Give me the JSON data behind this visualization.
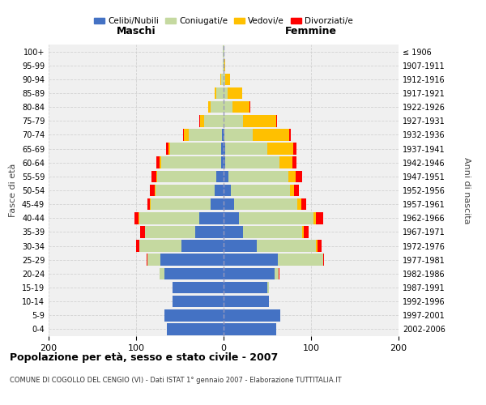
{
  "age_groups": [
    "0-4",
    "5-9",
    "10-14",
    "15-19",
    "20-24",
    "25-29",
    "30-34",
    "35-39",
    "40-44",
    "45-49",
    "50-54",
    "55-59",
    "60-64",
    "65-69",
    "70-74",
    "75-79",
    "80-84",
    "85-89",
    "90-94",
    "95-99",
    "100+"
  ],
  "birth_years": [
    "2002-2006",
    "1997-2001",
    "1992-1996",
    "1987-1991",
    "1982-1986",
    "1977-1981",
    "1972-1976",
    "1967-1971",
    "1962-1966",
    "1957-1961",
    "1952-1956",
    "1947-1951",
    "1942-1946",
    "1937-1941",
    "1932-1936",
    "1927-1931",
    "1922-1926",
    "1917-1921",
    "1912-1916",
    "1907-1911",
    "≤ 1906"
  ],
  "male": {
    "celibi": [
      65,
      68,
      58,
      58,
      68,
      72,
      48,
      32,
      28,
      15,
      10,
      8,
      3,
      3,
      2,
      0,
      0,
      0,
      0,
      0,
      0
    ],
    "coniugati": [
      0,
      0,
      0,
      0,
      5,
      15,
      48,
      58,
      68,
      68,
      68,
      68,
      68,
      58,
      38,
      22,
      15,
      8,
      3,
      1,
      1
    ],
    "vedovi": [
      0,
      0,
      0,
      0,
      0,
      0,
      0,
      0,
      1,
      1,
      1,
      1,
      2,
      2,
      5,
      5,
      3,
      2,
      1,
      0,
      0
    ],
    "divorziati": [
      0,
      0,
      0,
      0,
      0,
      1,
      4,
      5,
      5,
      3,
      5,
      5,
      4,
      3,
      1,
      1,
      0,
      0,
      0,
      0,
      0
    ]
  },
  "female": {
    "nubili": [
      60,
      65,
      52,
      50,
      58,
      62,
      38,
      22,
      18,
      12,
      8,
      6,
      2,
      2,
      1,
      0,
      0,
      0,
      0,
      0,
      0
    ],
    "coniugate": [
      0,
      0,
      0,
      2,
      5,
      52,
      68,
      68,
      85,
      72,
      68,
      68,
      62,
      48,
      32,
      22,
      10,
      5,
      2,
      1,
      1
    ],
    "vedove": [
      0,
      0,
      0,
      0,
      0,
      0,
      1,
      2,
      3,
      5,
      5,
      8,
      15,
      30,
      42,
      38,
      20,
      16,
      5,
      1,
      0
    ],
    "divorziate": [
      0,
      0,
      0,
      0,
      1,
      1,
      5,
      5,
      8,
      5,
      5,
      8,
      4,
      3,
      2,
      1,
      1,
      0,
      0,
      0,
      0
    ]
  },
  "colors": {
    "celibi": "#4472C4",
    "coniugati": "#c5d9a0",
    "vedovi": "#ffc000",
    "divorziati": "#ff0000"
  },
  "xlim": 200,
  "title": "Popolazione per età, sesso e stato civile - 2007",
  "subtitle": "COMUNE DI COGOLLO DEL CENGIO (VI) - Dati ISTAT 1° gennaio 2007 - Elaborazione TUTTITALIA.IT",
  "xlabel_left": "Maschi",
  "xlabel_right": "Femmine",
  "ylabel_left": "Fasce di età",
  "ylabel_right": "Anni di nascita",
  "legend_labels": [
    "Celibi/Nubili",
    "Coniugati/e",
    "Vedovi/e",
    "Divorziati/e"
  ],
  "bg_color": "#f0f0f0",
  "xticks": [
    -200,
    -100,
    0,
    100,
    200
  ],
  "xtick_labels": [
    "200",
    "100",
    "0",
    "100",
    "200"
  ]
}
